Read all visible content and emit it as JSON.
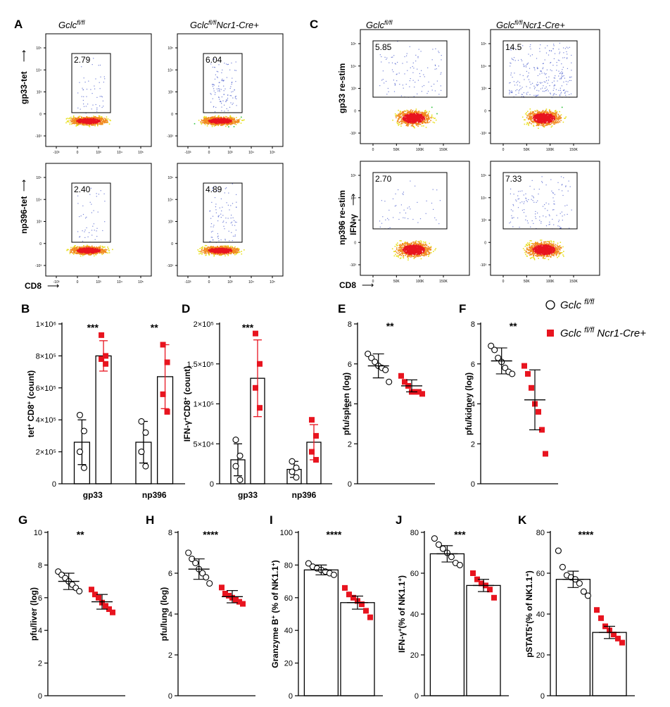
{
  "flow": {
    "panels": [
      {
        "letter": "A",
        "cols": [
          "Gclc",
          "Gclc"
        ],
        "sups": [
          "fl/fl",
          "fl/fl"
        ],
        "suffix": [
          "",
          "Ncr1-Cre+"
        ],
        "rows": [
          {
            "ylabel": "gp33-tet",
            "arrow": "⟶",
            "values": [
              "2.79",
              "6.04"
            ]
          },
          {
            "ylabel": "np396-tet",
            "arrow": "⟶",
            "values": [
              "2.40",
              "4.89"
            ]
          }
        ],
        "xlabel": "CD8",
        "xarrow": "⟶",
        "yticks": [
          "10⁵",
          "10⁴",
          "10³",
          "0",
          "-10³"
        ],
        "xticks": [
          "-10³",
          "0",
          "10³",
          "10⁴",
          "10⁵"
        ]
      },
      {
        "letter": "C",
        "cols": [
          "Gclc",
          "Gclc"
        ],
        "sups": [
          "fl/fl",
          "fl/fl"
        ],
        "suffix": [
          "",
          "Ncr1-Cre+"
        ],
        "rows": [
          {
            "ylabel": "gp33 re-stim",
            "ylabel2": "",
            "values": [
              "5.85",
              "14.5"
            ]
          },
          {
            "ylabel": "np396 re-stim",
            "ylabel2": "IFN-γ",
            "arrow": "⟶",
            "values": [
              "2.70",
              "7.33"
            ]
          }
        ],
        "xlabel": "CD8",
        "xarrow": "⟶",
        "yticks": [
          "10⁵",
          "10⁴",
          "10³",
          "0",
          "-10³"
        ],
        "xticks": [
          "0",
          "50K",
          "100K",
          "150K"
        ]
      }
    ]
  },
  "legend": {
    "entries": [
      {
        "name": "Gclc",
        "sup": "fl/fl",
        "suffix": "",
        "color": "#000000",
        "marker": "circle"
      },
      {
        "name": "Gclc",
        "sup": "fl/fl",
        "suffix": "Ncr1-Cre+",
        "color": "#e8141f",
        "marker": "square"
      }
    ]
  },
  "chart_data": [
    {
      "letter": "B",
      "type": "bar",
      "ylabel": "tet+ CD8+ (count)",
      "categories": [
        "gp33",
        "np396"
      ],
      "yticks": [
        "0",
        "2×10⁵",
        "4×10⁵",
        "6×10⁵",
        "8×10⁵",
        "1×10⁶"
      ],
      "ylim": [
        0,
        1000000
      ],
      "sig": [
        "***",
        "**"
      ],
      "series": [
        {
          "values": [
            260000,
            260000
          ],
          "err": [
            140000,
            130000
          ],
          "points": [
            [
              430000,
              330000,
              200000,
              100000
            ],
            [
              390000,
              320000,
              200000,
              110000
            ]
          ]
        },
        {
          "values": [
            800000,
            670000
          ],
          "err": [
            95000,
            200000
          ],
          "points": [
            [
              930000,
              800000,
              780000,
              750000
            ],
            [
              870000,
              760000,
              560000,
              450000
            ]
          ]
        }
      ]
    },
    {
      "letter": "D",
      "type": "bar",
      "ylabel": "IFN-γ+CD8+ (count)",
      "categories": [
        "gp33",
        "np396"
      ],
      "yticks": [
        "0",
        "5×10⁴",
        "1×10⁵",
        "1.5×10⁵",
        "2×10⁵"
      ],
      "ylim": [
        0,
        200000
      ],
      "sig": [
        "***",
        ""
      ],
      "series": [
        {
          "values": [
            30000,
            18000
          ],
          "err": [
            20000,
            10000
          ],
          "points": [
            [
              55000,
              35000,
              22000,
              5000
            ],
            [
              28000,
              20000,
              15000,
              8000
            ]
          ]
        },
        {
          "values": [
            132000,
            52000
          ],
          "err": [
            48000,
            22000
          ],
          "points": [
            [
              188000,
              150000,
              120000,
              95000
            ],
            [
              80000,
              60000,
              40000,
              30000
            ]
          ]
        }
      ]
    },
    {
      "letter": "E",
      "type": "scatter",
      "ylabel": "pfu/spleen (log)",
      "yticks": [
        "0",
        "2",
        "4",
        "6",
        "8"
      ],
      "ylim": [
        0,
        8
      ],
      "sig": "**",
      "bar": false,
      "groups": [
        {
          "mean": 5.9,
          "err": 0.6,
          "points": [
            6.5,
            6.3,
            6.1,
            5.9,
            5.8,
            5.7,
            5.1
          ]
        },
        {
          "mean": 4.9,
          "err": 0.3,
          "points": [
            5.4,
            5.1,
            4.9,
            4.6,
            4.6,
            4.6,
            4.5
          ]
        }
      ]
    },
    {
      "letter": "F",
      "type": "scatter",
      "ylabel": "pfu/kidney (log)",
      "yticks": [
        "0",
        "2",
        "4",
        "6",
        "8"
      ],
      "ylim": [
        0,
        8
      ],
      "sig": "**",
      "bar": false,
      "groups": [
        {
          "mean": 6.15,
          "err": 0.65,
          "points": [
            6.9,
            6.7,
            6.3,
            6.1,
            5.8,
            5.6,
            5.5
          ]
        },
        {
          "mean": 4.2,
          "err": 1.5,
          "points": [
            5.9,
            5.5,
            4.8,
            4.0,
            3.6,
            2.7,
            1.5
          ]
        }
      ]
    },
    {
      "letter": "G",
      "type": "scatter",
      "ylabel": "pfu/liver (log)",
      "yticks": [
        "0",
        "2",
        "4",
        "6",
        "8",
        "10"
      ],
      "ylim": [
        0,
        10
      ],
      "sig": "**",
      "bar": false,
      "groups": [
        {
          "mean": 7.0,
          "err": 0.5,
          "points": [
            7.6,
            7.4,
            7.2,
            7.0,
            6.8,
            6.6,
            6.4
          ]
        },
        {
          "mean": 5.75,
          "err": 0.45,
          "points": [
            6.5,
            6.2,
            6.0,
            5.7,
            5.5,
            5.3,
            5.1
          ]
        }
      ]
    },
    {
      "letter": "H",
      "type": "scatter",
      "ylabel": "pfu/lung (log)",
      "yticks": [
        "0",
        "2",
        "4",
        "6",
        "8"
      ],
      "ylim": [
        0,
        8
      ],
      "sig": "****",
      "bar": false,
      "groups": [
        {
          "mean": 6.2,
          "err": 0.5,
          "points": [
            7.0,
            6.7,
            6.5,
            6.2,
            6.0,
            5.8,
            5.5
          ]
        },
        {
          "mean": 4.85,
          "err": 0.3,
          "points": [
            5.3,
            5.0,
            4.9,
            4.8,
            4.7,
            4.6,
            4.5
          ]
        }
      ]
    },
    {
      "letter": "I",
      "type": "scatter",
      "ylabel": "Granzyme B+ (% of NK1.1+)",
      "yticks": [
        "0",
        "20",
        "40",
        "60",
        "80",
        "100"
      ],
      "ylim": [
        0,
        100
      ],
      "sig": "****",
      "bar": true,
      "groups": [
        {
          "mean": 77,
          "err": 3,
          "points": [
            81,
            79,
            78,
            77,
            76,
            75,
            74
          ]
        },
        {
          "mean": 57,
          "err": 4,
          "points": [
            66,
            62,
            60,
            58,
            56,
            52,
            48
          ]
        }
      ]
    },
    {
      "letter": "J",
      "type": "scatter",
      "ylabel": "IFN-γ+(% of NK1.1+)",
      "yticks": [
        "0",
        "20",
        "40",
        "60",
        "80"
      ],
      "ylim": [
        0,
        80
      ],
      "sig": "***",
      "bar": true,
      "groups": [
        {
          "mean": 69.5,
          "err": 4,
          "points": [
            77,
            74,
            72,
            70,
            68,
            65,
            64
          ]
        },
        {
          "mean": 54,
          "err": 3,
          "points": [
            60,
            57,
            55,
            54,
            52,
            48
          ]
        }
      ]
    },
    {
      "letter": "K",
      "type": "scatter",
      "ylabel": "pSTAT5+(% of NK1.1+)",
      "yticks": [
        "0",
        "20",
        "40",
        "60",
        "80"
      ],
      "ylim": [
        0,
        80
      ],
      "sig": "****",
      "bar": true,
      "groups": [
        {
          "mean": 57,
          "err": 4,
          "points": [
            71,
            63,
            59,
            58,
            57,
            55,
            51,
            49
          ]
        },
        {
          "mean": 31,
          "err": 3,
          "points": [
            42,
            38,
            34,
            32,
            30,
            28,
            26
          ]
        }
      ]
    }
  ]
}
